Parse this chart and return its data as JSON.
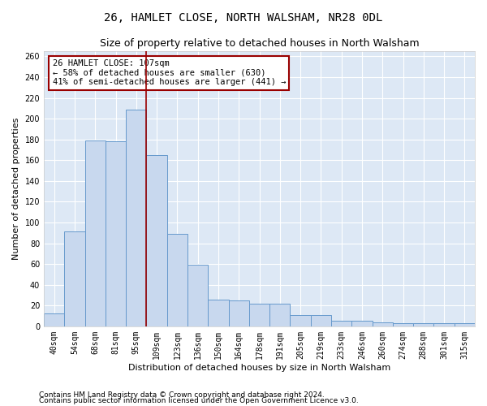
{
  "title": "26, HAMLET CLOSE, NORTH WALSHAM, NR28 0DL",
  "subtitle": "Size of property relative to detached houses in North Walsham",
  "xlabel": "Distribution of detached houses by size in North Walsham",
  "ylabel": "Number of detached properties",
  "categories": [
    "40sqm",
    "54sqm",
    "68sqm",
    "81sqm",
    "95sqm",
    "109sqm",
    "123sqm",
    "136sqm",
    "150sqm",
    "164sqm",
    "178sqm",
    "191sqm",
    "205sqm",
    "219sqm",
    "233sqm",
    "246sqm",
    "260sqm",
    "274sqm",
    "288sqm",
    "301sqm",
    "315sqm"
  ],
  "values": [
    12,
    91,
    179,
    178,
    209,
    165,
    89,
    59,
    26,
    25,
    22,
    22,
    11,
    11,
    5,
    5,
    4,
    3,
    3,
    3,
    3
  ],
  "bar_facecolor": "#c8d8ee",
  "bar_edgecolor": "#6699cc",
  "vline_x_index": 5,
  "vline_color": "#990000",
  "annotation_text": "26 HAMLET CLOSE: 107sqm\n← 58% of detached houses are smaller (630)\n41% of semi-detached houses are larger (441) →",
  "annotation_box_edgecolor": "#990000",
  "annotation_box_facecolor": "white",
  "footer_line1": "Contains HM Land Registry data © Crown copyright and database right 2024.",
  "footer_line2": "Contains public sector information licensed under the Open Government Licence v3.0.",
  "ylim": [
    0,
    265
  ],
  "yticks": [
    0,
    20,
    40,
    60,
    80,
    100,
    120,
    140,
    160,
    180,
    200,
    220,
    240,
    260
  ],
  "fig_background": "#ffffff",
  "plot_background": "#dde8f5",
  "grid_color": "#ffffff",
  "title_fontsize": 10,
  "subtitle_fontsize": 9,
  "ylabel_fontsize": 8,
  "xlabel_fontsize": 8,
  "tick_fontsize": 7,
  "annotation_fontsize": 7.5,
  "footer_fontsize": 6.5
}
